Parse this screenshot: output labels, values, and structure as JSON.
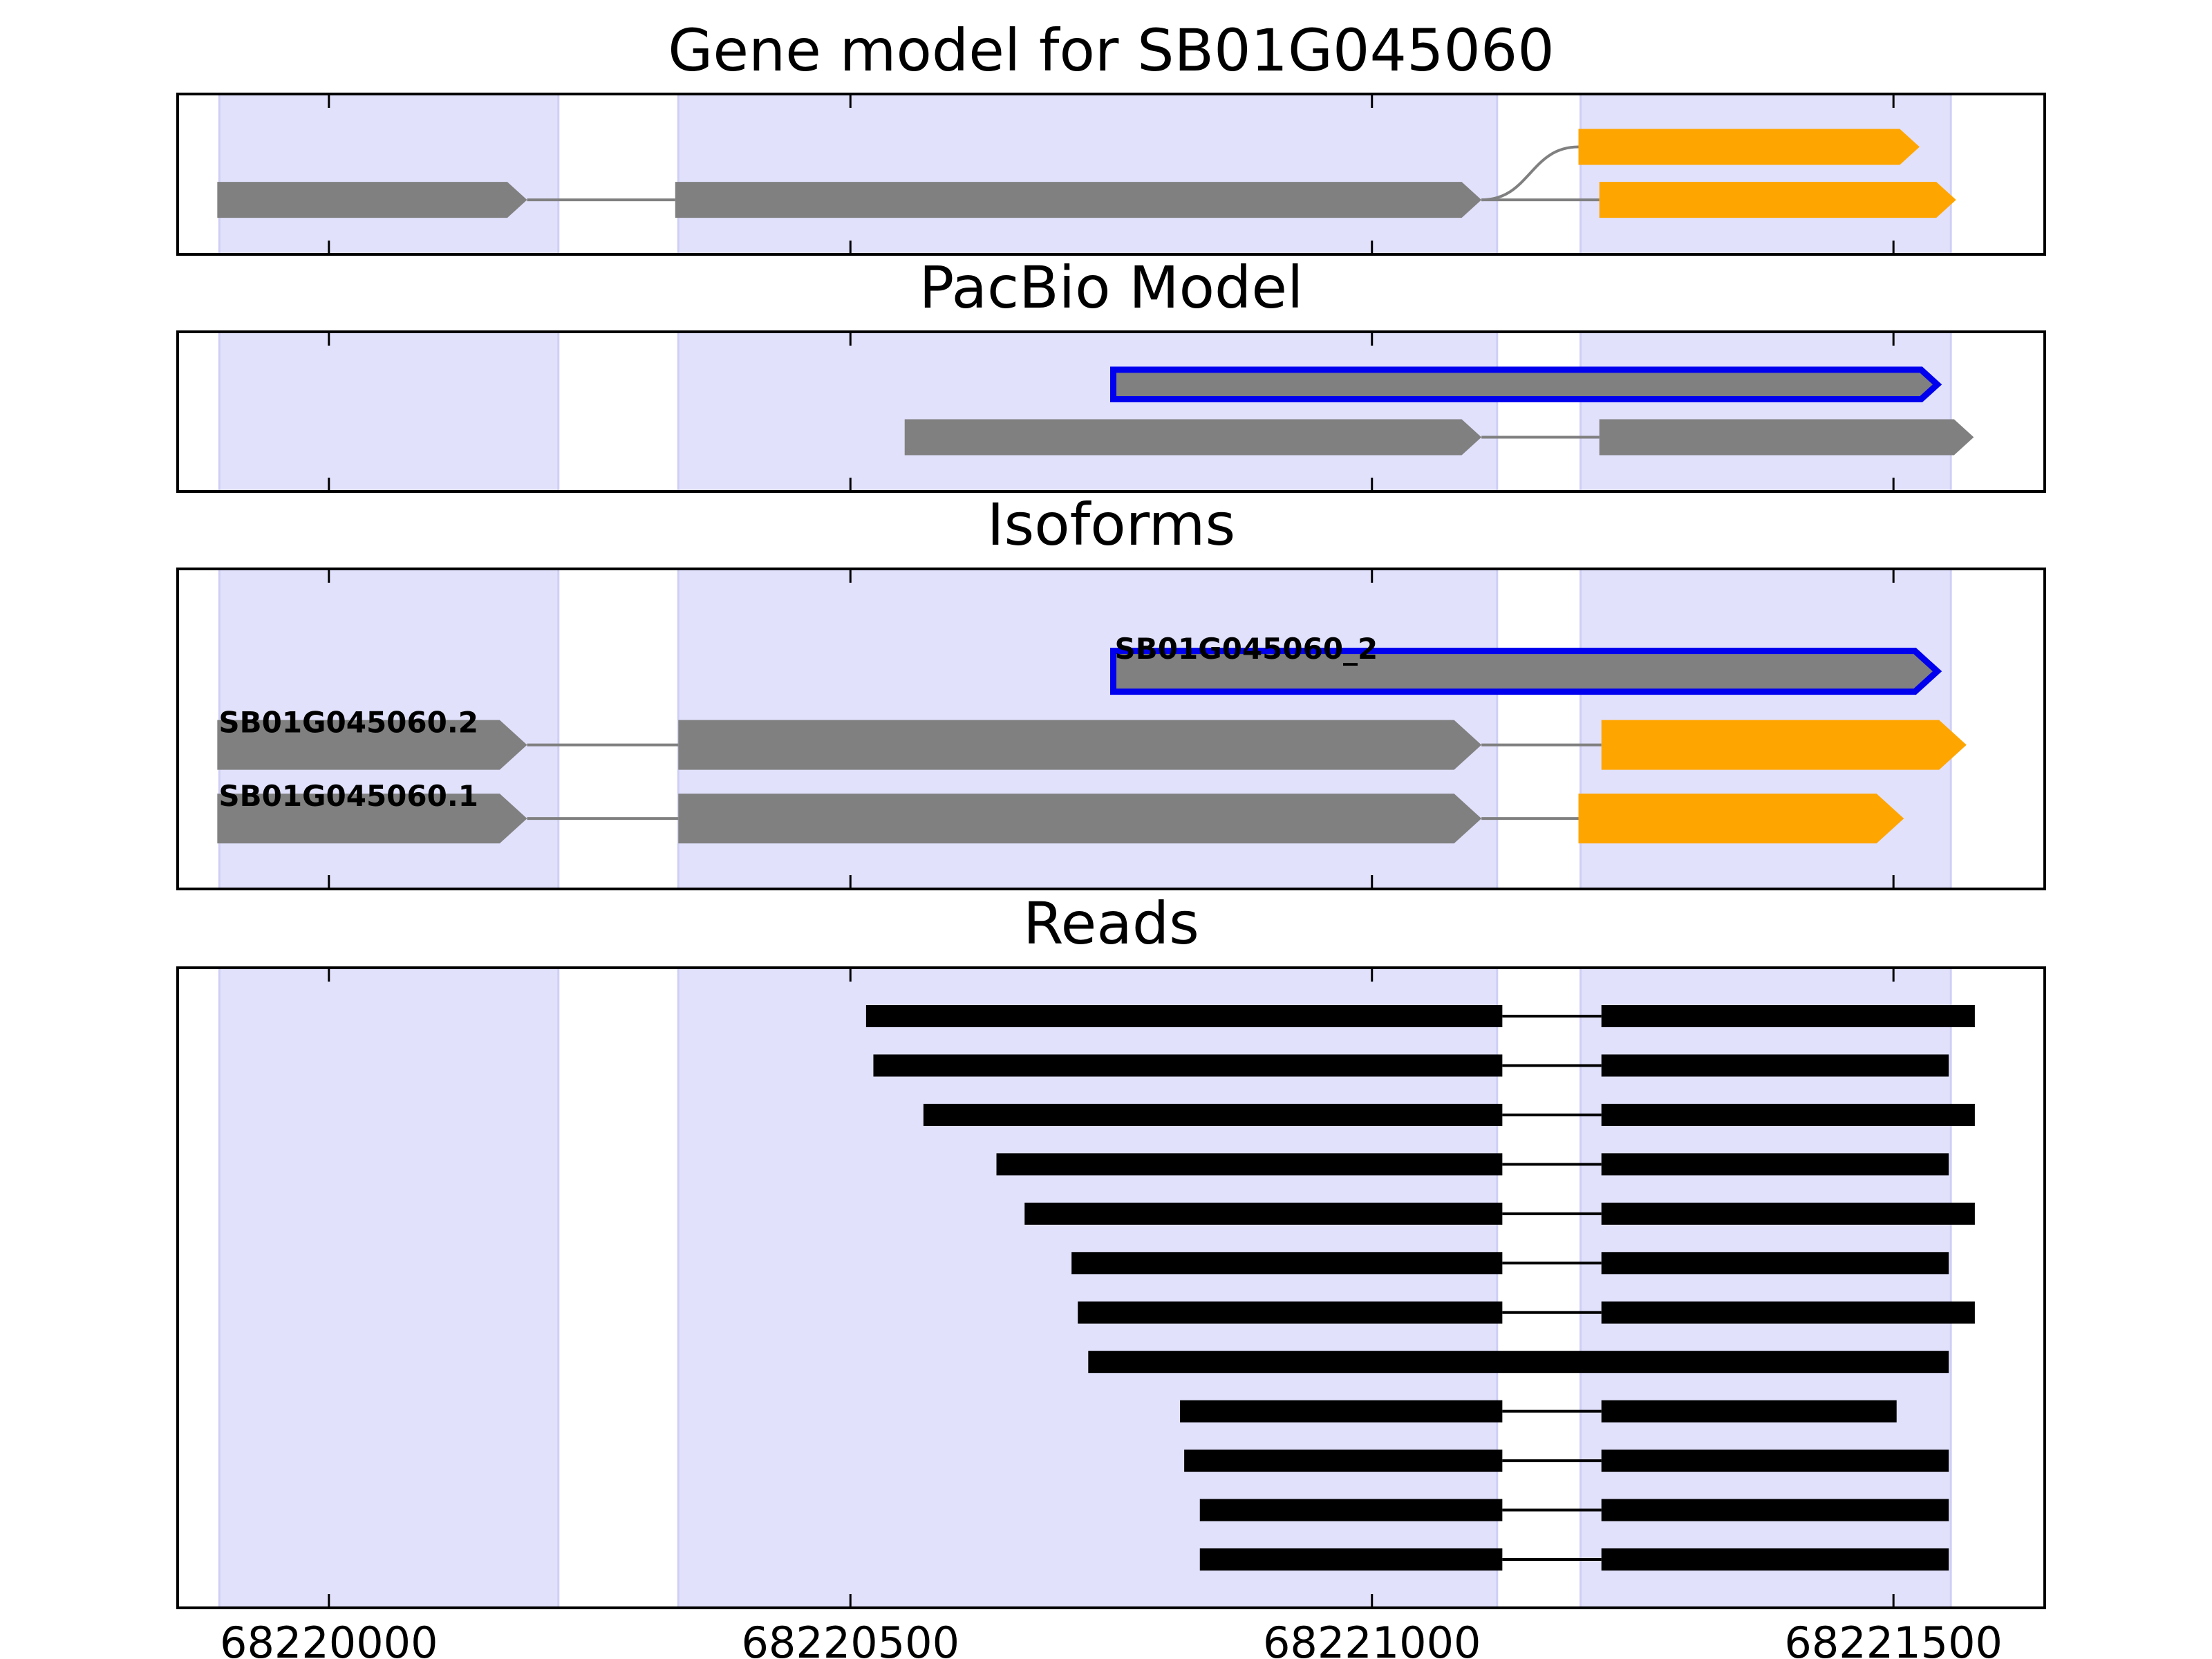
{
  "colors": {
    "band": "#e1e1fc",
    "band_edge": "#cfcff5",
    "gene_model": "#808080",
    "utr": "#ffa500",
    "intron": "#808080",
    "pacbio_outline": "#0000ee",
    "read": "#000000",
    "frame": "#000000"
  },
  "chart_data": {
    "type": "gene_track",
    "xlim": [
      68219855,
      68221645
    ],
    "xticks": [
      68220000,
      68220500,
      68221000,
      68221500
    ],
    "xtick_labels": [
      "68220000",
      "68220500",
      "68221000",
      "68221500"
    ],
    "grid": false,
    "exon_bands": [
      [
        68219895,
        68220220
      ],
      [
        68220335,
        68221120
      ],
      [
        68221200,
        68221555
      ]
    ],
    "panels": [
      {
        "title": "Gene model for SB01G045060",
        "rows": 2,
        "transcripts": [
          {
            "row": 0,
            "segments": [
              [
                68219893,
                68220190,
                "gene"
              ],
              [
                68220332,
                68221105,
                "gene"
              ],
              [
                68221218,
                68221560,
                "utr"
              ]
            ],
            "introns": [
              [
                68220190,
                68220332
              ],
              [
                68221105,
                68221218
              ]
            ]
          },
          {
            "row": 1,
            "segments": [
              [
                68221198,
                68221525,
                "utr"
              ]
            ],
            "curve_from": 68221105
          }
        ]
      },
      {
        "title": "PacBio Model",
        "rows": 2,
        "transcripts": [
          {
            "row": 0,
            "segments": [
              [
                68220552,
                68221105,
                "gene"
              ],
              [
                68221218,
                68221577,
                "gene"
              ]
            ],
            "introns": [
              [
                68221105,
                68221218
              ]
            ]
          },
          {
            "row": 1,
            "segments": [
              [
                68220752,
                68221542,
                "outline"
              ]
            ]
          }
        ]
      },
      {
        "title": "Isoforms",
        "rows": 3,
        "transcripts": [
          {
            "row": 0,
            "label": "SB01G045060.1",
            "segments": [
              [
                68219893,
                68220190,
                "gene"
              ],
              [
                68220335,
                68221105,
                "gene"
              ],
              [
                68221198,
                68221510,
                "utr"
              ]
            ],
            "introns": [
              [
                68220190,
                68220335
              ],
              [
                68221105,
                68221198
              ]
            ]
          },
          {
            "row": 1,
            "label": "SB01G045060.2",
            "segments": [
              [
                68219893,
                68220190,
                "gene"
              ],
              [
                68220335,
                68221105,
                "gene"
              ],
              [
                68221220,
                68221570,
                "utr"
              ]
            ],
            "introns": [
              [
                68220190,
                68220335
              ],
              [
                68221105,
                68221220
              ]
            ]
          },
          {
            "row": 2,
            "label": "SB01G045060_2",
            "segments": [
              [
                68220752,
                68221542,
                "outline"
              ]
            ]
          }
        ]
      },
      {
        "title": "Reads",
        "rows": 12,
        "reads": [
          {
            "start": 68220515,
            "split": [
              68221125,
              68221220
            ],
            "end": 68221578
          },
          {
            "start": 68220522,
            "split": [
              68221125,
              68221220
            ],
            "end": 68221553
          },
          {
            "start": 68220570,
            "split": [
              68221125,
              68221220
            ],
            "end": 68221578
          },
          {
            "start": 68220640,
            "split": [
              68221125,
              68221220
            ],
            "end": 68221553
          },
          {
            "start": 68220667,
            "split": [
              68221125,
              68221220
            ],
            "end": 68221578
          },
          {
            "start": 68220712,
            "split": [
              68221125,
              68221220
            ],
            "end": 68221553
          },
          {
            "start": 68220718,
            "split": [
              68221125,
              68221220
            ],
            "end": 68221578
          },
          {
            "start": 68220728,
            "split": null,
            "end": 68221553
          },
          {
            "start": 68220816,
            "split": [
              68221125,
              68221220
            ],
            "end": 68221503
          },
          {
            "start": 68220820,
            "split": [
              68221125,
              68221220
            ],
            "end": 68221553
          },
          {
            "start": 68220835,
            "split": [
              68221125,
              68221220
            ],
            "end": 68221553
          },
          {
            "start": 68220835,
            "split": [
              68221125,
              68221220
            ],
            "end": 68221553
          }
        ]
      }
    ]
  }
}
